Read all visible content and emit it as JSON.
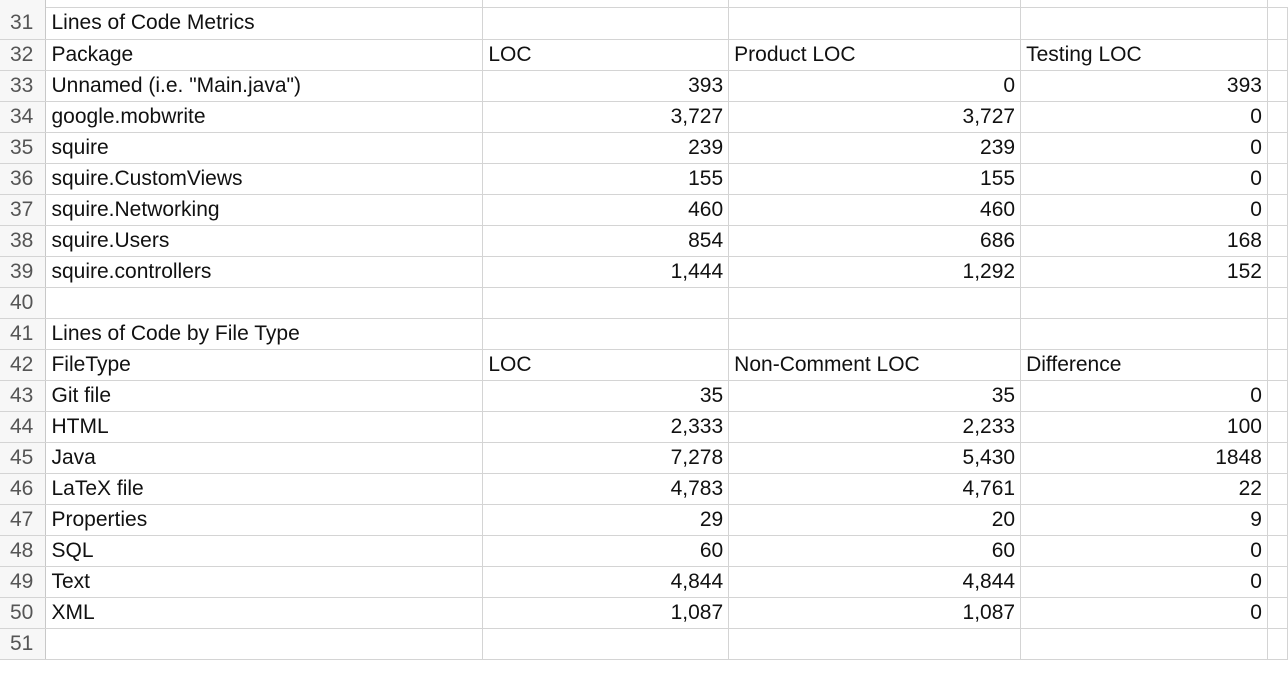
{
  "sheet": {
    "rows": [
      {
        "n": "31",
        "a": "Lines of Code Metrics",
        "b": "",
        "c": "",
        "d": ""
      },
      {
        "n": "32",
        "a": "Package",
        "b": "LOC",
        "c": "Product LOC",
        "d": "Testing LOC"
      },
      {
        "n": "33",
        "a": "Unnamed (i.e. \"Main.java\")",
        "b": "393",
        "c": "0",
        "d": "393"
      },
      {
        "n": "34",
        "a": "google.mobwrite",
        "b": "3,727",
        "c": "3,727",
        "d": "0"
      },
      {
        "n": "35",
        "a": "squire",
        "b": "239",
        "c": "239",
        "d": "0"
      },
      {
        "n": "36",
        "a": "squire.CustomViews",
        "b": "155",
        "c": "155",
        "d": "0"
      },
      {
        "n": "37",
        "a": "squire.Networking",
        "b": "460",
        "c": "460",
        "d": "0"
      },
      {
        "n": "38",
        "a": "squire.Users",
        "b": "854",
        "c": "686",
        "d": "168"
      },
      {
        "n": "39",
        "a": "squire.controllers",
        "b": "1,444",
        "c": "1,292",
        "d": "152"
      },
      {
        "n": "40",
        "a": "",
        "b": "",
        "c": "",
        "d": ""
      },
      {
        "n": "41",
        "a": "Lines of Code by File Type",
        "b": "",
        "c": "",
        "d": ""
      },
      {
        "n": "42",
        "a": "FileType",
        "b": "LOC",
        "c": "Non-Comment LOC",
        "d": "Difference"
      },
      {
        "n": "43",
        "a": "Git file",
        "b": "35",
        "c": "35",
        "d": "0"
      },
      {
        "n": "44",
        "a": "HTML",
        "b": "2,333",
        "c": "2,233",
        "d": "100"
      },
      {
        "n": "45",
        "a": "Java",
        "b": "7,278",
        "c": "5,430",
        "d": "1848"
      },
      {
        "n": "46",
        "a": "LaTeX file",
        "b": "4,783",
        "c": "4,761",
        "d": "22"
      },
      {
        "n": "47",
        "a": "Properties",
        "b": "29",
        "c": "20",
        "d": "9"
      },
      {
        "n": "48",
        "a": "SQL",
        "b": "60",
        "c": "60",
        "d": "0"
      },
      {
        "n": "49",
        "a": "Text",
        "b": "4,844",
        "c": "4,844",
        "d": "0"
      },
      {
        "n": "50",
        "a": "XML",
        "b": "1,087",
        "c": "1,087",
        "d": "0"
      },
      {
        "n": "51",
        "a": "",
        "b": "",
        "c": "",
        "d": ""
      }
    ]
  }
}
